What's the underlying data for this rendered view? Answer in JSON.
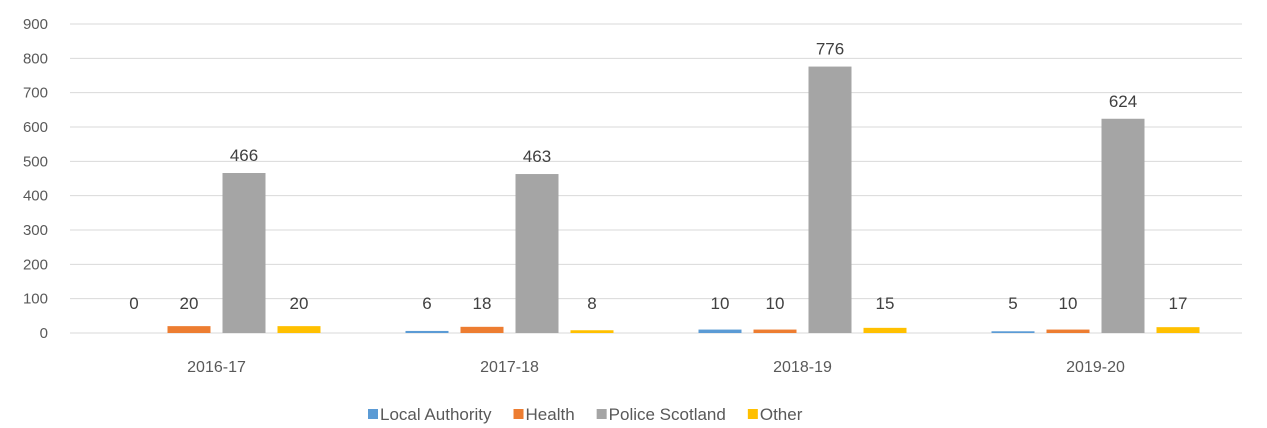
{
  "chart_data": {
    "type": "bar",
    "title": "",
    "xlabel": "",
    "ylabel": "",
    "categories": [
      "2016-17",
      "2017-18",
      "2018-19",
      "2019-20"
    ],
    "series": [
      {
        "name": "Local Authority",
        "color": "#5B9BD5",
        "values": [
          0,
          6,
          10,
          5
        ]
      },
      {
        "name": "Health",
        "color": "#ED7D31",
        "values": [
          20,
          18,
          10,
          10
        ]
      },
      {
        "name": "Police Scotland",
        "color": "#A5A5A5",
        "values": [
          466,
          463,
          776,
          624
        ]
      },
      {
        "name": "Other",
        "color": "#FFC000",
        "values": [
          20,
          8,
          15,
          17
        ]
      }
    ],
    "ylim": [
      0,
      900
    ],
    "yticks": [
      0,
      100,
      200,
      300,
      400,
      500,
      600,
      700,
      800,
      900
    ],
    "grid": true,
    "legend_position": "bottom"
  }
}
